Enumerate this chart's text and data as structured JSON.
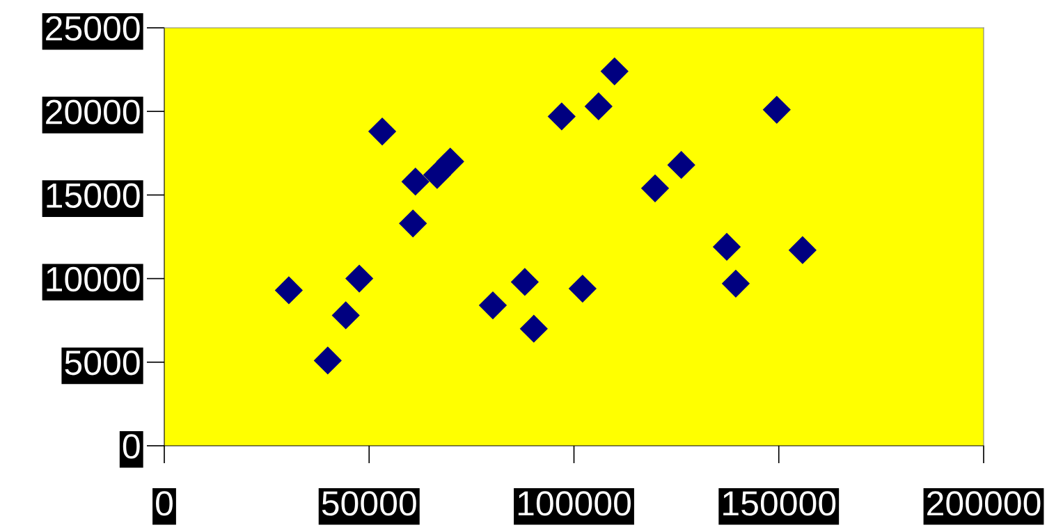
{
  "chart_data": {
    "type": "scatter",
    "marker": "diamond",
    "grid": false,
    "xlim": [
      0,
      200000
    ],
    "xticks": [
      0,
      50000,
      100000,
      150000,
      200000
    ],
    "ylim": [
      0,
      25000
    ],
    "yticks": [
      0,
      5000,
      10000,
      15000,
      20000,
      25000
    ],
    "series": [
      {
        "color": "#000080",
        "x": [
          30400,
          39900,
          44300,
          47600,
          53200,
          60700,
          61300,
          66600,
          69800,
          80200,
          88000,
          90200,
          97000,
          102100,
          106000,
          109900,
          119800,
          126200,
          137300,
          139500,
          149500,
          155800
        ],
        "values": [
          9300,
          5100,
          7800,
          10000,
          18800,
          13300,
          15800,
          16200,
          17000,
          8400,
          9800,
          7000,
          19700,
          9400,
          20300,
          22400,
          15400,
          16800,
          11900,
          9700,
          20100,
          11700
        ]
      }
    ]
  }
}
